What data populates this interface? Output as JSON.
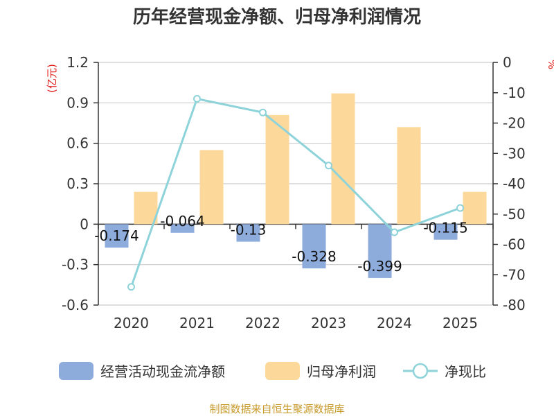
{
  "title": "历年经营现金净额、归母净利润情况",
  "footer": "制图数据来自恒生聚源数据库",
  "colors": {
    "cash_flow": "#8dabdb",
    "net_profit": "#fdd89b",
    "ratio_line": "#8dd3d9",
    "grid": "#cccccc",
    "axis": "#333333",
    "unit_text": "#e0201a",
    "footer": "#c79a2a"
  },
  "chart_data": {
    "type": "bar+line",
    "categories": [
      "2020",
      "2021",
      "2022",
      "2023",
      "2024",
      "2025"
    ],
    "left_axis": {
      "unit": "(亿元)",
      "range": [
        -0.6,
        1.2
      ],
      "ticks": [
        1.2,
        0.9,
        0.6,
        0.3,
        0,
        -0.3,
        -0.6
      ],
      "tick_labels": [
        "1.2",
        "0.9",
        "0.6",
        "0.3",
        "0",
        "-0.3",
        "-0.6"
      ]
    },
    "right_axis": {
      "unit": "%",
      "range": [
        -80,
        0
      ],
      "ticks": [
        0,
        -10,
        -20,
        -30,
        -40,
        -50,
        -60,
        -70,
        -80
      ],
      "tick_labels": [
        "0",
        "-10",
        "-20",
        "-30",
        "-40",
        "-50",
        "-60",
        "-70",
        "-80"
      ]
    },
    "series": [
      {
        "name": "经营活动现金流净额",
        "type": "bar",
        "axis": "left",
        "values": [
          -0.174,
          -0.064,
          -0.13,
          -0.328,
          -0.399,
          -0.115
        ],
        "labels": [
          "-0.174",
          "-0.064",
          "-0.13",
          "-0.328",
          "-0.399",
          "-0.115"
        ]
      },
      {
        "name": "归母净利润",
        "type": "bar",
        "axis": "left",
        "values": [
          0.24,
          0.55,
          0.81,
          0.97,
          0.72,
          0.24
        ]
      },
      {
        "name": "净现比",
        "type": "line",
        "axis": "right",
        "values": [
          -74,
          -12,
          -16.5,
          -34,
          -56,
          -48
        ]
      }
    ],
    "legend": {
      "position": "bottom",
      "items": [
        "经营活动现金流净额",
        "归母净利润",
        "净现比"
      ]
    }
  }
}
